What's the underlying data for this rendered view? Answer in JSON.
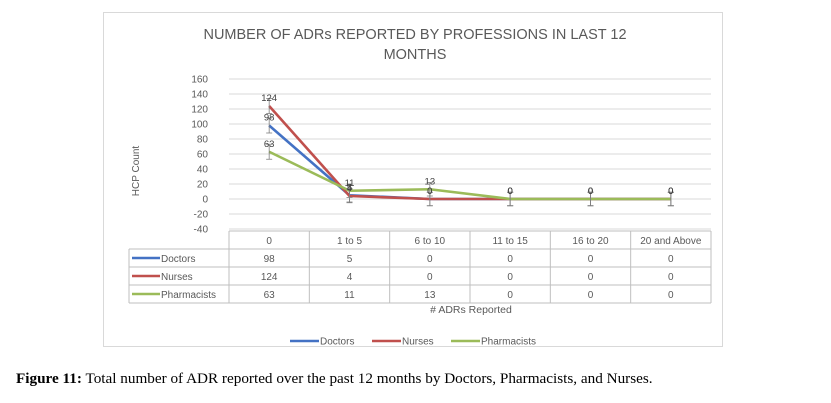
{
  "caption": {
    "label": "Figure 11:",
    "text": "Total number of ADR reported over the past 12 months by Doctors, Pharmacists, and Nurses."
  },
  "chart_data": {
    "type": "line",
    "title_line1": "NUMBER OF ADRs REPORTED BY PROFESSIONS IN LAST 12",
    "title_line2": "MONTHS",
    "xlabel": "# ADRs Reported",
    "ylabel": "HCP Count",
    "categories": [
      "0",
      "1 to 5",
      "6 to 10",
      "11 to 15",
      "16 to 20",
      "20 and Above"
    ],
    "ylim": [
      -40,
      160
    ],
    "yticks": [
      "160",
      "140",
      "120",
      "100",
      "80",
      "60",
      "40",
      "20",
      "0",
      "-20",
      "-40"
    ],
    "grid": true,
    "legend_position": "bottom",
    "error_bars": true,
    "data_table": true,
    "series": [
      {
        "name": "Doctors",
        "color": "#4472c4",
        "values": [
          98,
          5,
          0,
          0,
          0,
          0
        ],
        "labels": [
          "98",
          "5",
          "0",
          "0",
          "0",
          "0"
        ]
      },
      {
        "name": "Nurses",
        "color": "#c0504d",
        "values": [
          124,
          4,
          0,
          0,
          0,
          0
        ],
        "labels": [
          "124",
          "4",
          "0",
          "0",
          "0",
          "0"
        ]
      },
      {
        "name": "Pharmacists",
        "color": "#9bbb59",
        "values": [
          63,
          11,
          13,
          0,
          0,
          0
        ],
        "labels": [
          "63",
          "11",
          "13",
          "0",
          "0",
          "0"
        ]
      }
    ]
  }
}
